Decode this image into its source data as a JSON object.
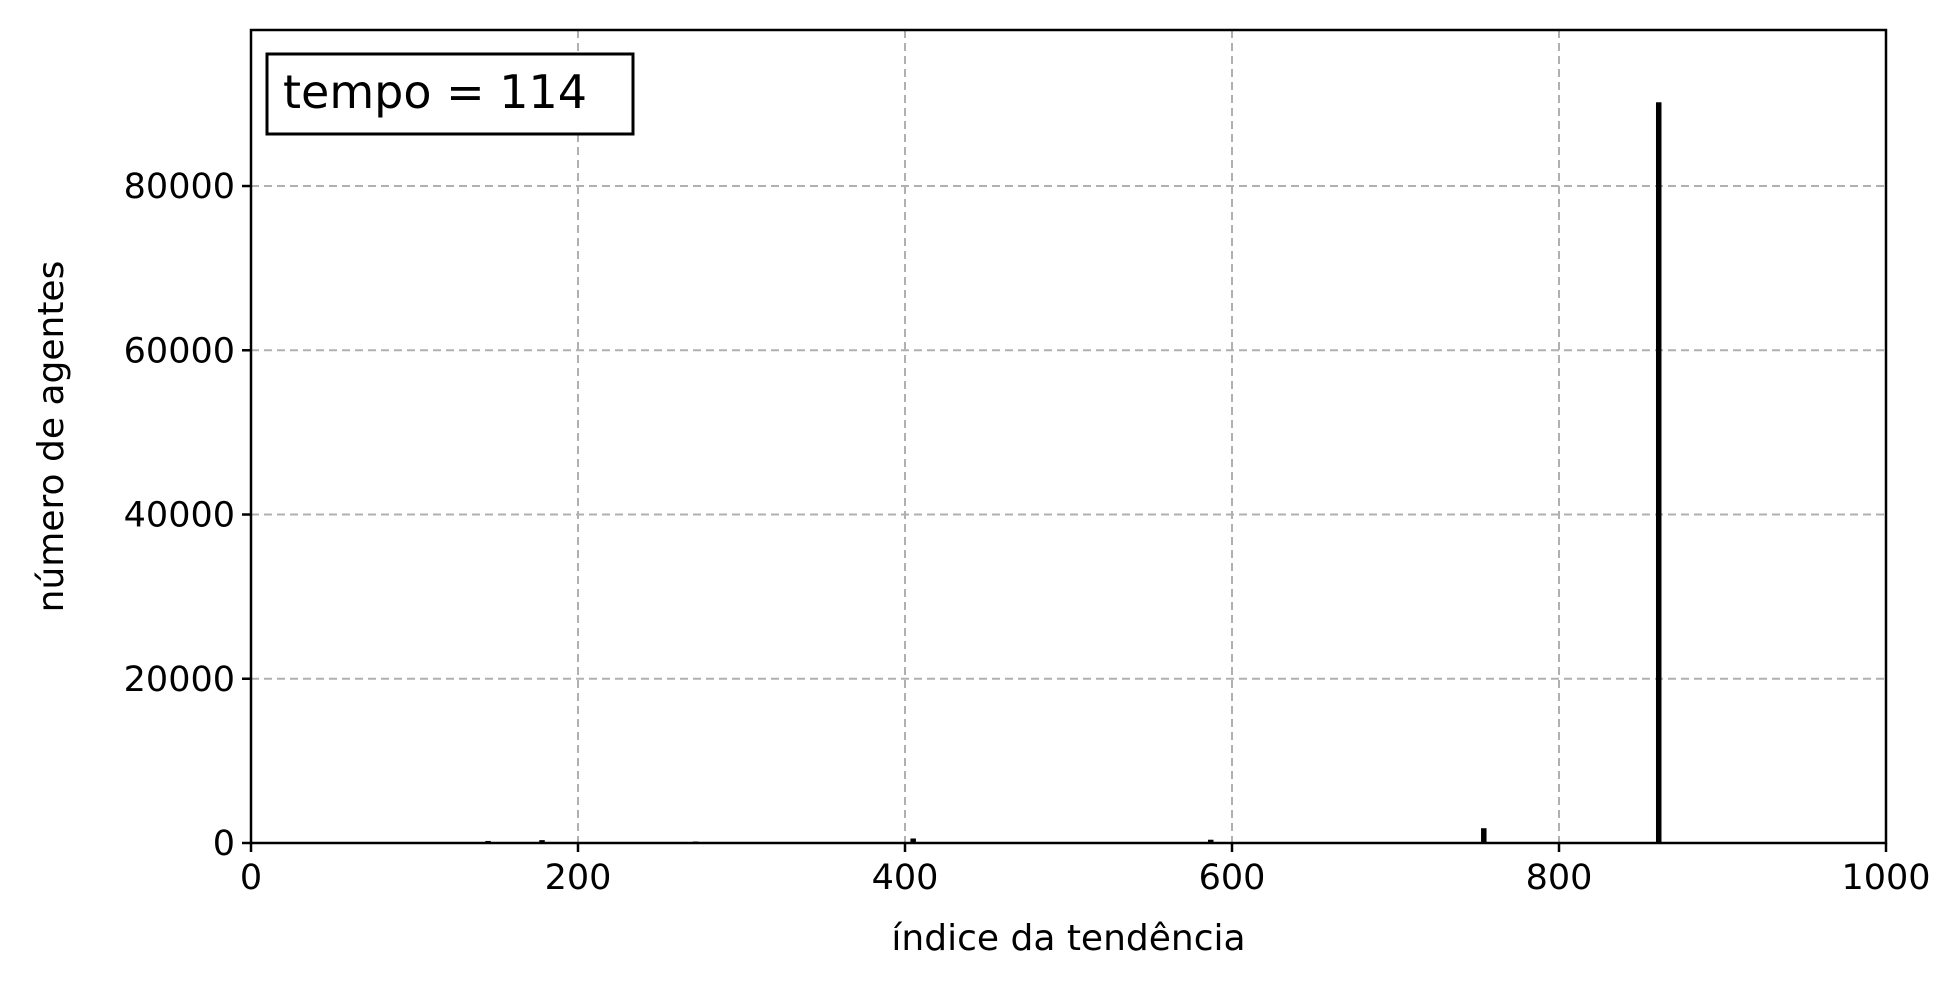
{
  "chart_data": {
    "type": "bar",
    "title": "",
    "xlabel": "índice da tendência",
    "ylabel": "número de agentes",
    "xlim": [
      0,
      1000
    ],
    "ylim": [
      0,
      99000
    ],
    "xticks": [
      0,
      200,
      400,
      600,
      800,
      1000
    ],
    "yticks": [
      0,
      20000,
      40000,
      60000,
      80000
    ],
    "grid": true,
    "annotation": "tempo = 114",
    "annotation_position": "top-left",
    "bar_color": "#000000",
    "series": [
      {
        "x": [
          8,
          145,
          178,
          272,
          405,
          587,
          754,
          861
        ],
        "values": [
          120,
          250,
          350,
          180,
          550,
          400,
          1800,
          90200
        ]
      }
    ]
  }
}
